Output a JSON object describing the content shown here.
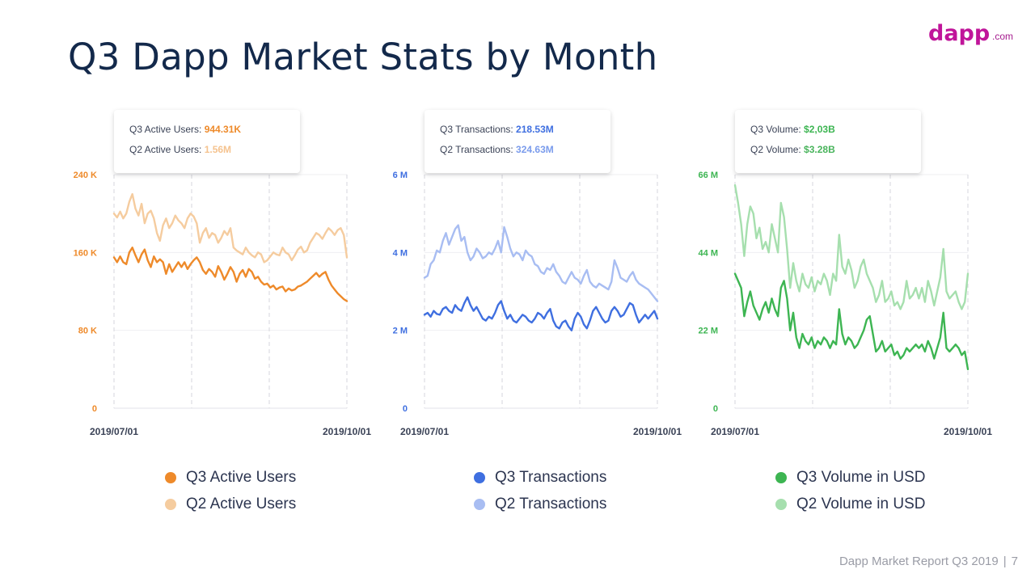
{
  "slide": {
    "title": "Q3 Dapp Market Stats by Month",
    "logo": {
      "main": "dapp",
      "tld": ".com"
    },
    "footer": {
      "report": "Dapp Market Report Q3 2019",
      "separator": "|",
      "page": "7"
    }
  },
  "colors": {
    "title": "#13294b",
    "logo": "#c0159a",
    "orange_dark": "#ee8a2a",
    "orange_light": "#f5cc9f",
    "blue_dark": "#3f6fe0",
    "blue_light": "#a8bdf2",
    "green_dark": "#3db552",
    "green_light": "#a6dfae"
  },
  "chart_data": [
    {
      "type": "line",
      "x_start": "2019/07/01",
      "x_end": "2019/10/01",
      "x_labels": [
        "2019/07/01",
        "2019/10/01"
      ],
      "yticks": [
        "0",
        "80 K",
        "160 K",
        "240 K"
      ],
      "ylim": [
        0,
        240000
      ],
      "grid": "dashed vertical, light horizontal",
      "accent": "#ee8a2a",
      "tooltip": [
        {
          "label": "Q3 Active Users: ",
          "value": "944.31K",
          "color": "#ee8a2a"
        },
        {
          "label": "Q2 Active Users: ",
          "value": "1.56M",
          "color": "#f5c38f"
        }
      ],
      "series": [
        {
          "name": "Q3 Active Users",
          "color": "#ee8a2a",
          "values": [
            155000,
            150000,
            156000,
            150000,
            148000,
            160000,
            165000,
            157000,
            150000,
            158000,
            163000,
            152000,
            145000,
            156000,
            150000,
            153000,
            150000,
            138000,
            148000,
            140000,
            145000,
            150000,
            145000,
            150000,
            143000,
            148000,
            152000,
            155000,
            150000,
            142000,
            138000,
            143000,
            140000,
            135000,
            146000,
            140000,
            132000,
            138000,
            145000,
            140000,
            130000,
            138000,
            142000,
            135000,
            143000,
            140000,
            133000,
            135000,
            130000,
            127000,
            128000,
            124000,
            126000,
            122000,
            124000,
            125000,
            120000,
            123000,
            121000,
            122000,
            125000,
            126000,
            128000,
            130000,
            133000,
            136000,
            139000,
            135000,
            138000,
            140000,
            132000,
            126000,
            122000,
            118000,
            115000,
            112000,
            110000
          ]
        },
        {
          "name": "Q2 Active Users",
          "color": "#f5cc9f",
          "values": [
            200000,
            196000,
            202000,
            195000,
            200000,
            212000,
            220000,
            205000,
            198000,
            210000,
            190000,
            200000,
            203000,
            195000,
            180000,
            172000,
            188000,
            195000,
            185000,
            190000,
            198000,
            193000,
            190000,
            185000,
            195000,
            200000,
            197000,
            190000,
            170000,
            180000,
            185000,
            175000,
            180000,
            178000,
            170000,
            175000,
            182000,
            178000,
            185000,
            165000,
            162000,
            160000,
            158000,
            165000,
            160000,
            157000,
            155000,
            160000,
            158000,
            150000,
            152000,
            156000,
            160000,
            158000,
            157000,
            165000,
            160000,
            158000,
            152000,
            157000,
            163000,
            166000,
            160000,
            162000,
            170000,
            175000,
            180000,
            178000,
            174000,
            180000,
            185000,
            182000,
            178000,
            183000,
            185000,
            178000,
            155000
          ]
        }
      ]
    },
    {
      "type": "line",
      "x_start": "2019/07/01",
      "x_end": "2019/10/01",
      "x_labels": [
        "2019/07/01",
        "2019/10/01"
      ],
      "yticks": [
        "0",
        "2 M",
        "4 M",
        "6 M"
      ],
      "ylim": [
        0,
        6000000
      ],
      "grid": "dashed vertical, light horizontal",
      "accent": "#3f6fe0",
      "tooltip": [
        {
          "label": "Q3 Transactions: ",
          "value": "218.53M",
          "color": "#3f6fe0"
        },
        {
          "label": "Q2 Transactions: ",
          "value": "324.63M",
          "color": "#7b9cec"
        }
      ],
      "series": [
        {
          "name": "Q3 Transactions",
          "color": "#3f6fe0",
          "values": [
            2400000,
            2450000,
            2350000,
            2500000,
            2420000,
            2400000,
            2550000,
            2600000,
            2500000,
            2450000,
            2650000,
            2550000,
            2500000,
            2700000,
            2850000,
            2650000,
            2500000,
            2600000,
            2450000,
            2300000,
            2250000,
            2350000,
            2300000,
            2450000,
            2650000,
            2750000,
            2500000,
            2300000,
            2400000,
            2250000,
            2200000,
            2300000,
            2400000,
            2350000,
            2250000,
            2200000,
            2300000,
            2450000,
            2400000,
            2300000,
            2450000,
            2550000,
            2250000,
            2100000,
            2050000,
            2200000,
            2250000,
            2100000,
            2000000,
            2300000,
            2450000,
            2350000,
            2150000,
            2050000,
            2250000,
            2500000,
            2600000,
            2450000,
            2300000,
            2200000,
            2250000,
            2500000,
            2600000,
            2500000,
            2350000,
            2400000,
            2550000,
            2700000,
            2650000,
            2400000,
            2200000,
            2300000,
            2400000,
            2300000,
            2400000,
            2500000,
            2300000
          ]
        },
        {
          "name": "Q2 Transactions",
          "color": "#a8bdf2",
          "values": [
            3350000,
            3400000,
            3700000,
            3800000,
            4050000,
            4000000,
            4300000,
            4500000,
            4200000,
            4400000,
            4600000,
            4700000,
            4300000,
            4400000,
            4000000,
            3800000,
            3900000,
            4100000,
            4000000,
            3850000,
            3900000,
            4000000,
            3950000,
            4100000,
            4300000,
            4000000,
            4650000,
            4400000,
            4100000,
            3900000,
            4000000,
            3950000,
            3800000,
            4050000,
            3950000,
            3900000,
            3700000,
            3650000,
            3500000,
            3450000,
            3600000,
            3550000,
            3700000,
            3500000,
            3400000,
            3250000,
            3200000,
            3350000,
            3500000,
            3350000,
            3300000,
            3200000,
            3400000,
            3550000,
            3250000,
            3150000,
            3100000,
            3200000,
            3150000,
            3100000,
            3050000,
            3250000,
            3800000,
            3600000,
            3350000,
            3300000,
            3250000,
            3400000,
            3500000,
            3300000,
            3200000,
            3150000,
            3100000,
            3050000,
            2950000,
            2850000,
            2750000
          ]
        }
      ]
    },
    {
      "type": "line",
      "x_start": "2019/07/01",
      "x_end": "2019/10/01",
      "x_labels": [
        "2019/07/01",
        "2019/10/01"
      ],
      "yticks": [
        "0",
        "22 M",
        "44 M",
        "66 M"
      ],
      "ylim": [
        0,
        66000000
      ],
      "grid": "dashed vertical, light horizontal",
      "accent": "#3db552",
      "tooltip": [
        {
          "label": "Q3 Volume: ",
          "value": "$2,03B",
          "color": "#3db552"
        },
        {
          "label": "Q2 Volume: ",
          "value": "$3.28B",
          "color": "#49b45c"
        }
      ],
      "series": [
        {
          "name": "Q3 Volume in USD",
          "color": "#3db552",
          "values": [
            38000000,
            36000000,
            34000000,
            26000000,
            30000000,
            33000000,
            29000000,
            27000000,
            25000000,
            28000000,
            30000000,
            27000000,
            31000000,
            28000000,
            26000000,
            34000000,
            36000000,
            31000000,
            22000000,
            27000000,
            20000000,
            17000000,
            21000000,
            19000000,
            18000000,
            20000000,
            17000000,
            19000000,
            18000000,
            20000000,
            19000000,
            17000000,
            19000000,
            18000000,
            28000000,
            21000000,
            18000000,
            20000000,
            19000000,
            17000000,
            18000000,
            20000000,
            22000000,
            25000000,
            26000000,
            21000000,
            16000000,
            17000000,
            19000000,
            16000000,
            17000000,
            18000000,
            15000000,
            16000000,
            14000000,
            15000000,
            17000000,
            16000000,
            17000000,
            18000000,
            17000000,
            18000000,
            16000000,
            19000000,
            17000000,
            14000000,
            17000000,
            20000000,
            27000000,
            17000000,
            16000000,
            17000000,
            18000000,
            17000000,
            15000000,
            16000000,
            11000000
          ]
        },
        {
          "name": "Q2 Volume in USD",
          "color": "#a6dfae",
          "values": [
            63000000,
            58000000,
            52000000,
            43000000,
            52000000,
            57000000,
            55000000,
            48000000,
            51000000,
            45000000,
            47000000,
            44000000,
            52000000,
            48000000,
            44000000,
            58000000,
            54000000,
            45000000,
            34000000,
            41000000,
            36000000,
            33000000,
            38000000,
            35000000,
            34000000,
            37000000,
            33000000,
            36000000,
            35000000,
            38000000,
            36000000,
            32000000,
            38000000,
            36000000,
            49000000,
            40000000,
            38000000,
            42000000,
            39000000,
            34000000,
            36000000,
            40000000,
            42000000,
            38000000,
            36000000,
            34000000,
            30000000,
            32000000,
            36000000,
            30000000,
            31000000,
            33000000,
            29000000,
            30000000,
            28000000,
            30000000,
            36000000,
            31000000,
            32000000,
            34000000,
            31000000,
            34000000,
            30000000,
            36000000,
            33000000,
            29000000,
            33000000,
            37000000,
            45000000,
            33000000,
            31000000,
            32000000,
            33000000,
            30000000,
            28000000,
            30000000,
            38000000
          ]
        }
      ]
    }
  ]
}
